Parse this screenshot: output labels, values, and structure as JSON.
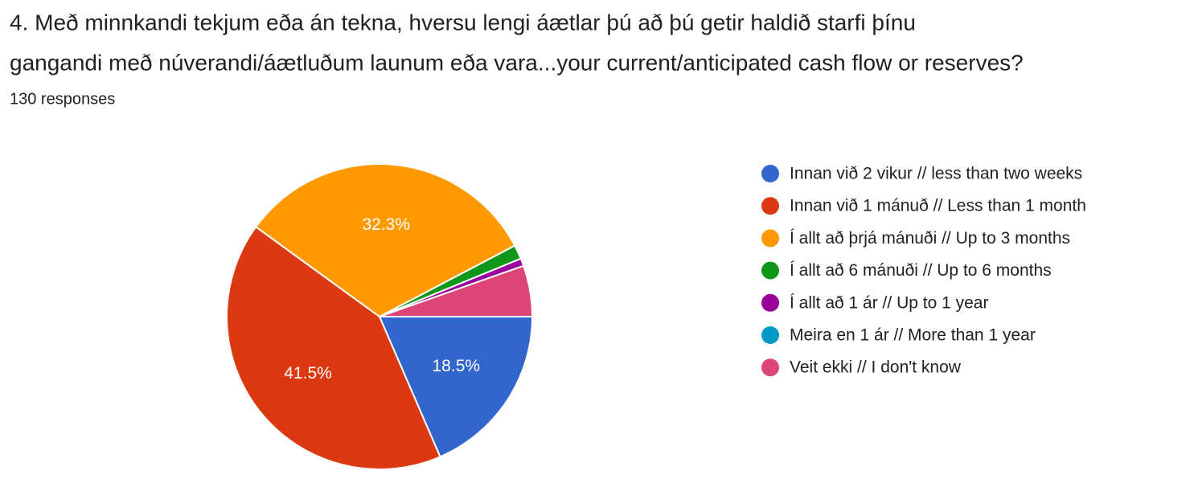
{
  "chart_data": {
    "type": "pie",
    "title": [
      "4. Með minnkandi tekjum eða án tekna, hversu lengi áætlar þú að þú getir haldið starfi þínu",
      "gangandi með núverandi/áætluðum launum eða vara...your current/anticipated cash flow or reserves?"
    ],
    "subtitle": "130 responses",
    "categories": [
      "Innan við 2 vikur // less than two weeks",
      "Innan við 1 mánuð // Less than 1 month",
      "Í allt að þrjá mánuði // Up to 3 months",
      "Í allt að 6 mánuði // Up to 6 months",
      "Í allt að 1 ár // Up to 1 year",
      "Meira en 1 ár // More than 1 year",
      "Veit ekki // I don't know"
    ],
    "values": [
      18.5,
      41.5,
      32.3,
      1.5,
      0.8,
      0,
      5.4
    ],
    "value_labels": [
      "18.5%",
      "41.5%",
      "32.3%",
      null,
      null,
      null,
      null
    ],
    "colors": [
      "#3366cc",
      "#dc3912",
      "#ff9900",
      "#109618",
      "#990099",
      "#0099c6",
      "#dd4477"
    ],
    "legend": "right"
  }
}
